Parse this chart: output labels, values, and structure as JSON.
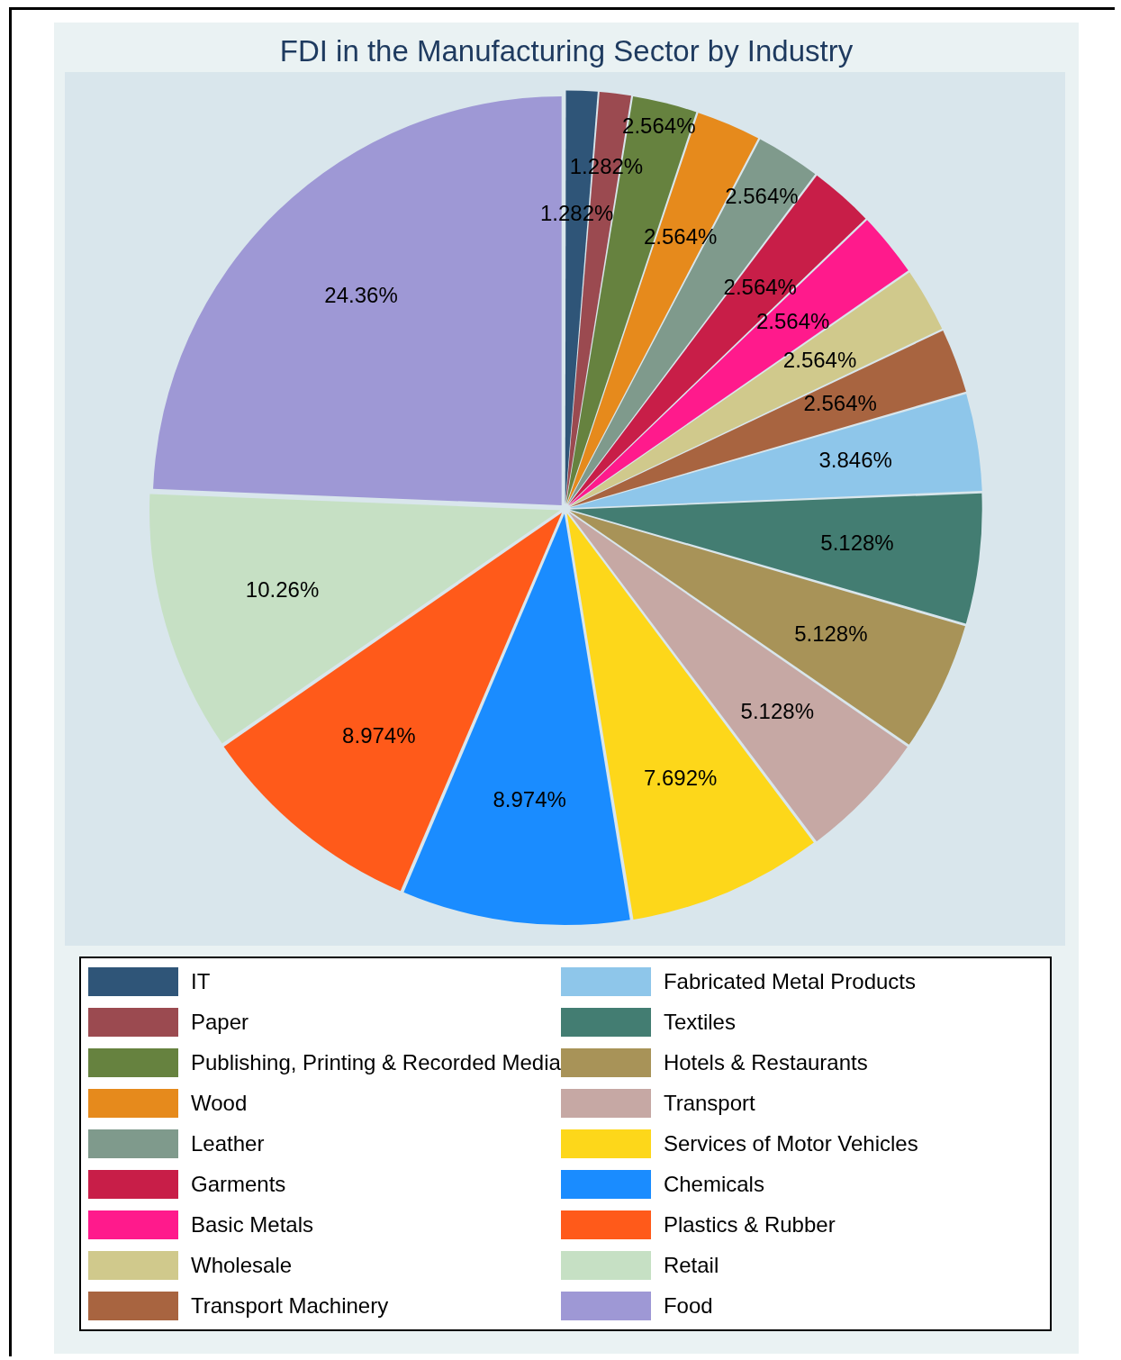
{
  "chart_data": {
    "type": "pie",
    "title": "FDI in the Manufacturing Sector by Industry",
    "categories": [
      "IT",
      "Paper",
      "Publishing, Printing & Recorded Media",
      "Wood",
      "Leather",
      "Garments",
      "Basic Metals",
      "Wholesale",
      "Transport Machinery",
      "Fabricated Metal Products",
      "Textiles",
      "Hotels & Restaurants",
      "Transport",
      "Services of Motor Vehicles",
      "Chemicals",
      "Plastics & Rubber",
      "Retail",
      "Food"
    ],
    "values": [
      1.282,
      1.282,
      2.564,
      2.564,
      2.564,
      2.564,
      2.564,
      2.564,
      2.564,
      3.846,
      5.128,
      5.128,
      5.128,
      7.692,
      8.974,
      8.974,
      10.26,
      24.36
    ],
    "colors": [
      "#2f5578",
      "#9b4a50",
      "#66823f",
      "#e68a1c",
      "#7f9a8c",
      "#c81e48",
      "#ff1a8c",
      "#d0c98c",
      "#a86440",
      "#8ec6ea",
      "#437d72",
      "#a89358",
      "#c6a8a4",
      "#fdd71a",
      "#1a8cff",
      "#ff5a1a",
      "#c6e0c4",
      "#9e98d5"
    ],
    "value_labels": [
      "1.282%",
      "1.282%",
      "2.564%",
      "2.564%",
      "2.564%",
      "2.564%",
      "2.564%",
      "2.564%",
      "2.564%",
      "3.846%",
      "5.128%",
      "5.128%",
      "5.128%",
      "7.692%",
      "8.974%",
      "8.974%",
      "10.26%",
      "24.36%"
    ],
    "legend": "bottom"
  }
}
